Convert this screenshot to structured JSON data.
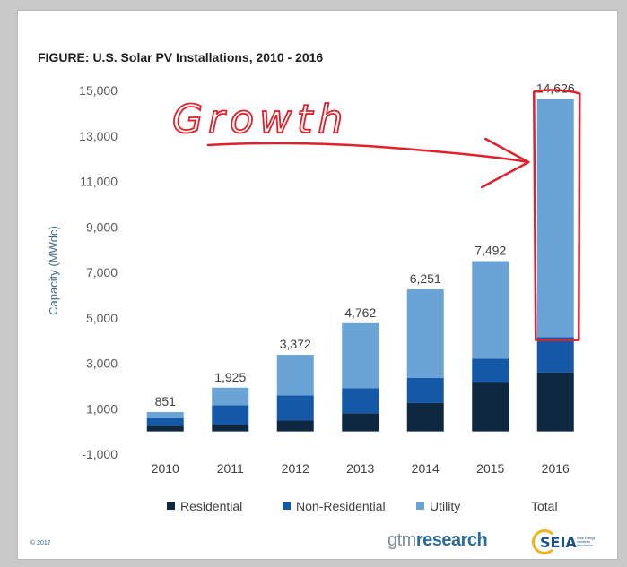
{
  "chart_data": {
    "type": "bar",
    "stacked": true,
    "title": "FIGURE: U.S. Solar PV Installations, 2010 - 2016",
    "ylabel": "Capacity (MWdc)",
    "ylim": [
      -1000,
      15000
    ],
    "yticks": [
      -1000,
      1000,
      3000,
      5000,
      7000,
      9000,
      11000,
      13000,
      15000
    ],
    "ytick_labels": [
      "-1,000",
      "1,000",
      "3,000",
      "5,000",
      "7,000",
      "9,000",
      "11,000",
      "13,000",
      "15,000"
    ],
    "categories": [
      "2010",
      "2011",
      "2012",
      "2013",
      "2014",
      "2015",
      "2016"
    ],
    "series": [
      {
        "name": "Residential",
        "color": "#0e2841",
        "values": [
          250,
          300,
          480,
          800,
          1250,
          2150,
          2600
        ]
      },
      {
        "name": "Non-Residential",
        "color": "#1558a8",
        "values": [
          330,
          850,
          1100,
          1100,
          1100,
          1050,
          1550
        ]
      },
      {
        "name": "Utility",
        "color": "#6aa3d6",
        "values": [
          271,
          775,
          1792,
          2862,
          3901,
          4292,
          10476
        ]
      }
    ],
    "totals": [
      851,
      1925,
      3372,
      4762,
      6251,
      7492,
      14626
    ],
    "total_labels": [
      "851",
      "1,925",
      "3,372",
      "4,762",
      "6,251",
      "7,492",
      "14,626"
    ],
    "legend": {
      "placement": "bottom",
      "items": [
        {
          "label": "Residential",
          "color": "#0e2841"
        },
        {
          "label": "Non-Residential",
          "color": "#1558a8"
        },
        {
          "label": "Utility",
          "color": "#6aa3d6"
        },
        {
          "label": "Total",
          "color": ""
        }
      ]
    },
    "grid": false,
    "annotations": {
      "handwritten_text": "Growth",
      "highlight_category": "2016",
      "annotation_color": "#e0202a"
    }
  },
  "footer": {
    "copyright": "© 2017",
    "logo_gtm_part1": "gtm",
    "logo_gtm_part2": "research",
    "logo_seia": "SEIA",
    "logo_seia_sub": "Solar Energy Industries Association"
  }
}
